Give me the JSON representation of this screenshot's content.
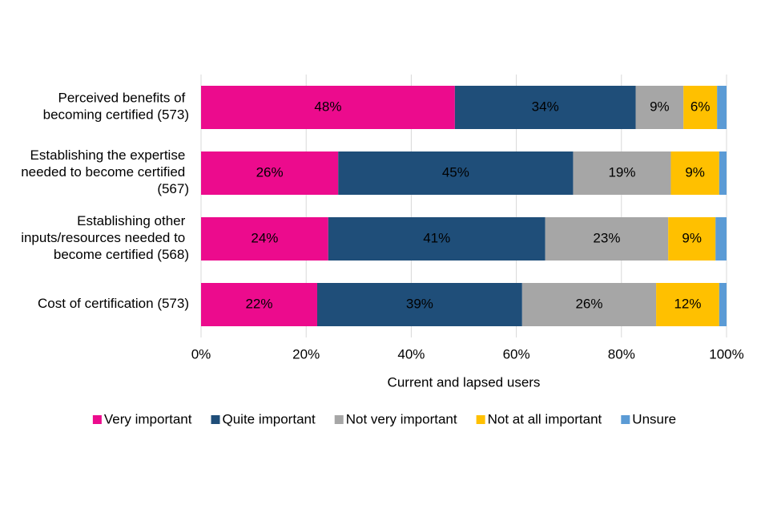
{
  "chart_data": {
    "type": "stacked_bar_horizontal",
    "x_axis_label": "Current and lapsed users",
    "categories": [
      "Perceived benefits of becoming certified (573)",
      "Establishing the expertise needed to become certified (567)",
      "Establishing other inputs/resources needed to become certified (568)",
      "Cost of certification (573)"
    ],
    "series": [
      {
        "name": "Very important",
        "color": "#ec0b8d",
        "values": [
          48.3,
          26.1,
          24.2,
          22.1
        ],
        "value_labels": [
          "48%",
          "26%",
          "24%",
          "22%"
        ]
      },
      {
        "name": "Quite important",
        "color": "#1f4e79",
        "values": [
          34.4,
          44.7,
          41.3,
          39.0
        ],
        "value_labels": [
          "34%",
          "45%",
          "41%",
          "39%"
        ]
      },
      {
        "name": "Not very important",
        "color": "#a6a6a6",
        "values": [
          9.1,
          18.6,
          23.4,
          25.5
        ],
        "value_labels": [
          "9%",
          "19%",
          "23%",
          "26%"
        ]
      },
      {
        "name": "Not at all important",
        "color": "#ffc000",
        "values": [
          6.4,
          9.2,
          9.0,
          12.0
        ],
        "value_labels": [
          "6%",
          "9%",
          "9%",
          "12%"
        ]
      },
      {
        "name": "Unsure",
        "color": "#5b9bd5",
        "values": [
          1.8,
          1.4,
          2.1,
          1.4
        ]
      }
    ],
    "xlim": [
      0,
      100
    ],
    "xticks": [
      {
        "value": 0,
        "label": "0%"
      },
      {
        "value": 20,
        "label": "20%"
      },
      {
        "value": 40,
        "label": "40%"
      },
      {
        "value": 60,
        "label": "60%"
      },
      {
        "value": 80,
        "label": "80%"
      },
      {
        "value": 100,
        "label": "100%"
      }
    ],
    "grid": true,
    "legend": "bottom"
  }
}
